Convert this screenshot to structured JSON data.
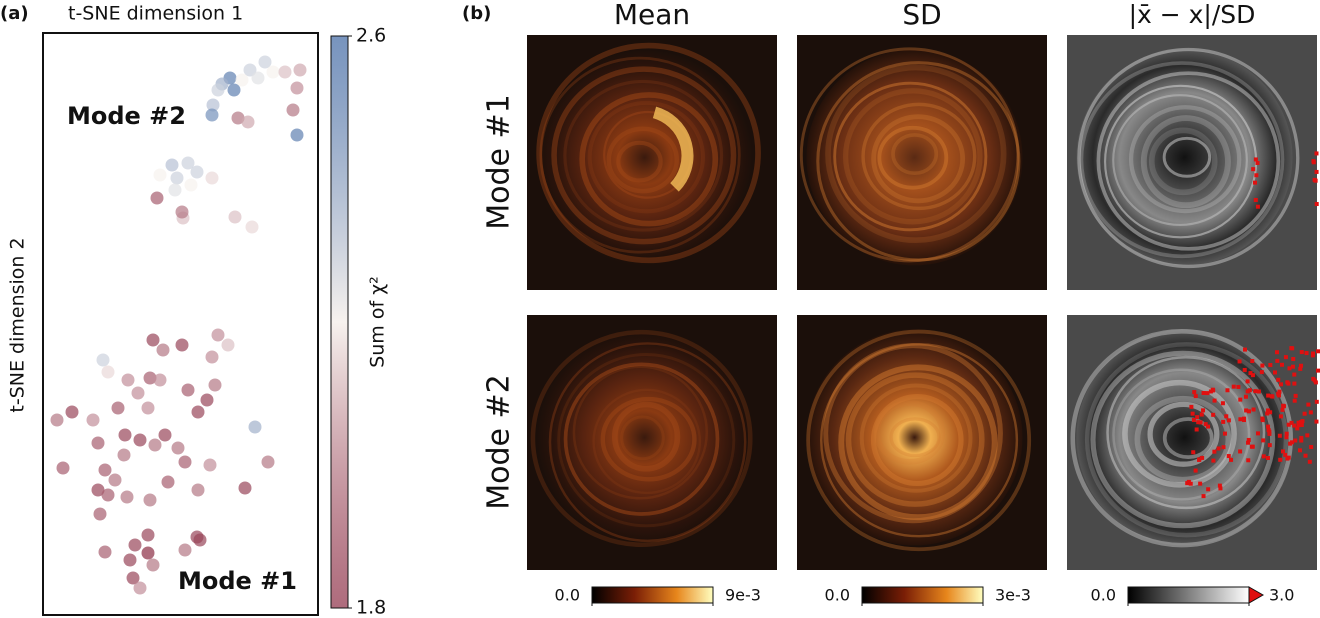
{
  "chart_data": {
    "type": "scatter",
    "panel_label": "(a)",
    "x_label": "t-SNE dimension 1",
    "y_label": "t-SNE dimension 2",
    "annotations": [
      "Mode #2",
      "Mode #1"
    ],
    "xlim": [
      0,
      275
    ],
    "ylim": [
      0,
      582
    ],
    "x": [
      222,
      207,
      230,
      187,
      179,
      215,
      199,
      191,
      175,
      242,
      257,
      254,
      170,
      169,
      195,
      205,
      250,
      254,
      129,
      145,
      117,
      134,
      154,
      169,
      132,
      148,
      140,
      114,
      139,
      192,
      209,
      110,
      139,
      120,
      175,
      185,
      169,
      60,
      65,
      107,
      117,
      85,
      95,
      172,
      164,
      155,
      145,
      29,
      14,
      50,
      75,
      105,
      212,
      82,
      97,
      112,
      55,
      122,
      135,
      20,
      62,
      81,
      142,
      167,
      225,
      72,
      55,
      65,
      84,
      125,
      155,
      202,
      57,
      107,
      105,
      92,
      154,
      157,
      142,
      105,
      87,
      62,
      110,
      90,
      97
    ],
    "y": [
      553,
      545,
      543,
      537,
      531,
      537,
      535,
      525,
      525,
      543,
      545,
      527,
      510,
      500,
      497,
      493,
      505,
      480,
      450,
      452,
      440,
      437,
      443,
      437,
      425,
      430,
      397,
      417,
      403,
      398,
      388,
      275,
      270,
      265,
      280,
      270,
      258,
      255,
      243,
      237,
      235,
      235,
      222,
      230,
      215,
      203,
      225,
      203,
      195,
      195,
      207,
      207,
      188,
      180,
      175,
      170,
      172,
      180,
      167,
      147,
      145,
      160,
      153,
      150,
      153,
      135,
      125,
      120,
      118,
      133,
      125,
      127,
      101,
      115,
      80,
      70,
      78,
      75,
      65,
      62,
      55,
      63,
      50,
      37,
      27
    ],
    "color_values": [
      2.3,
      2.3,
      2.2,
      2.55,
      2.4,
      2.25,
      2.2,
      2.55,
      2.3,
      2.1,
      2.05,
      2.0,
      2.35,
      2.5,
      1.95,
      2.05,
      1.95,
      2.55,
      2.35,
      2.3,
      2.2,
      2.3,
      2.3,
      2.15,
      2.25,
      2.2,
      2.1,
      1.9,
      1.95,
      2.1,
      2.15,
      1.85,
      1.85,
      1.95,
      2.0,
      2.1,
      2.0,
      2.3,
      2.15,
      1.9,
      2.0,
      2.0,
      2.0,
      1.95,
      1.85,
      1.85,
      1.9,
      1.85,
      1.95,
      2.0,
      1.9,
      2.0,
      2.4,
      1.85,
      1.85,
      1.95,
      1.9,
      1.85,
      1.95,
      1.9,
      1.9,
      1.95,
      1.9,
      2.0,
      1.95,
      1.95,
      1.85,
      1.9,
      1.95,
      1.9,
      1.95,
      1.85,
      1.9,
      1.95,
      1.85,
      1.85,
      1.85,
      1.85,
      1.95,
      1.8,
      1.85,
      1.9,
      1.95,
      1.85,
      2.0
    ],
    "colorbar": {
      "label": "Sum of χ²",
      "lim": [
        1.8,
        2.6
      ],
      "ticks": [
        1.8,
        2.6
      ],
      "colors": [
        "#8c2d45",
        "#f7f2ee",
        "#4a70a8"
      ]
    }
  },
  "panel_b": {
    "panel_label": "(b)",
    "columns": [
      "Mean",
      "SD",
      "|x̄ − x|/SD"
    ],
    "rows": [
      "Mode #1",
      "Mode #2"
    ],
    "colorbars": [
      {
        "lim": [
          0,
          0.009
        ],
        "ticks": [
          {
            "value": 0,
            "label": "0.0"
          },
          {
            "value": 0.009,
            "label": "9e-3"
          }
        ]
      },
      {
        "lim": [
          0,
          0.003
        ],
        "ticks": [
          {
            "value": 0,
            "label": "0.0"
          },
          {
            "value": 0.003,
            "label": "3e-3"
          }
        ]
      },
      {
        "lim": [
          0,
          3
        ],
        "ticks": [
          {
            "value": 0,
            "label": "0.0"
          },
          {
            "value": 3,
            "label": "3.0"
          }
        ]
      }
    ]
  }
}
